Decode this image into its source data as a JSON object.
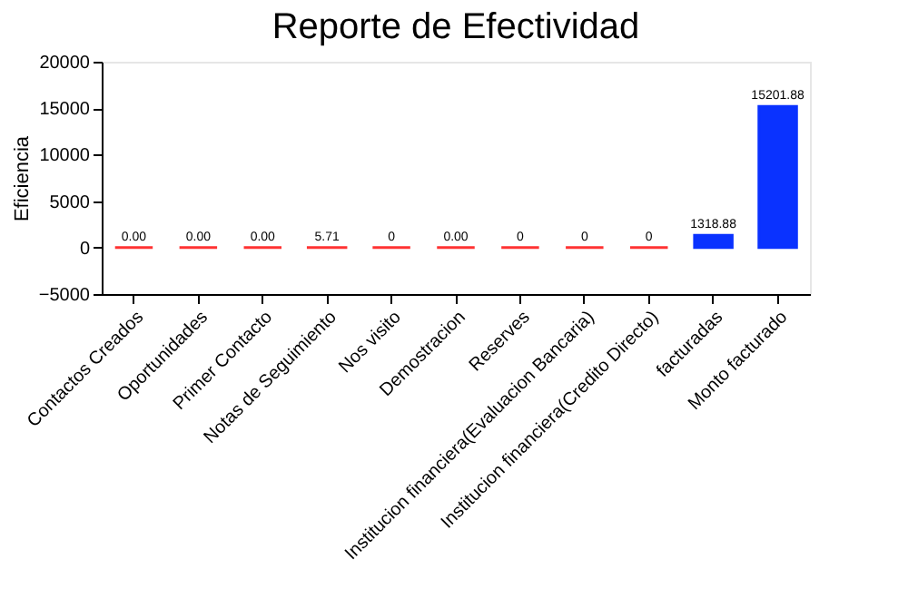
{
  "chart_data": {
    "type": "bar",
    "title": "Reporte de Efectividad",
    "ylabel": "Eficiencia",
    "categories": [
      "Contactos Creados",
      "Oportunidades",
      "Primer Contacto",
      "Notas de Seguimiento",
      "Nos visito",
      "Demostracion",
      "Reserves",
      "Institucion financiera(Evaluacion Bancaria)",
      "Institucion financiera(Credito Directo)",
      "facturadas",
      "Monto facturado"
    ],
    "values": [
      0,
      0,
      0,
      5.71,
      0,
      0,
      0,
      0,
      0,
      1318.88,
      15201.88
    ],
    "value_labels": [
      "0.00",
      "0.00",
      "0.00",
      "5.71",
      "0",
      "0.00",
      "0",
      "0",
      "0",
      "1318.88",
      "15201.88"
    ],
    "colors": [
      "#ff3333",
      "#ff3333",
      "#ff3333",
      "#ff3333",
      "#ff3333",
      "#ff3333",
      "#ff3333",
      "#ff3333",
      "#ff3333",
      "#0a32ff",
      "#0a32ff"
    ],
    "ylim": [
      -5000,
      20000
    ],
    "yticks": [
      -5000,
      0,
      5000,
      10000,
      15000,
      20000
    ],
    "grid": false
  }
}
